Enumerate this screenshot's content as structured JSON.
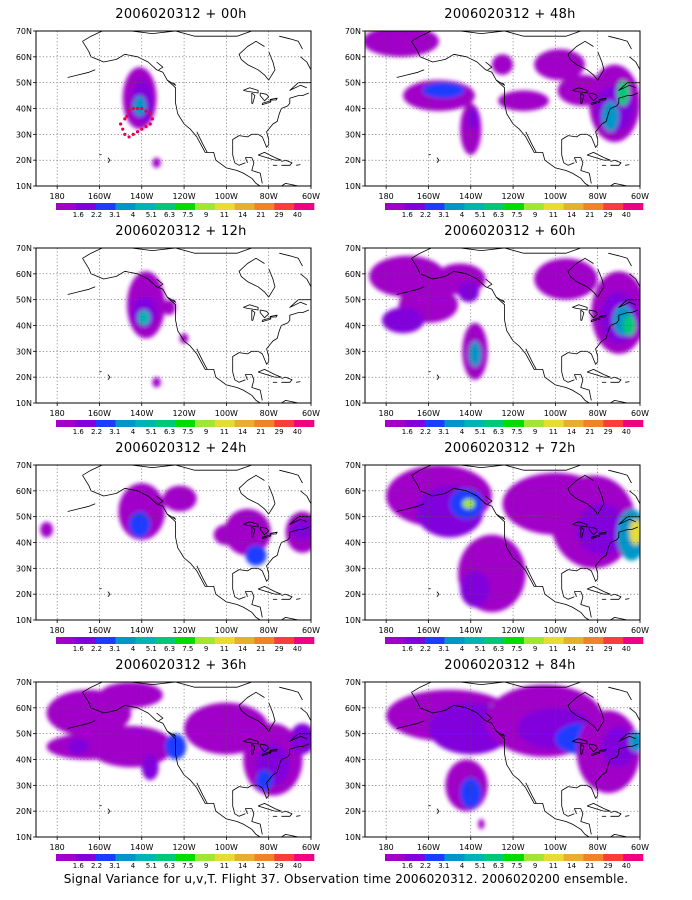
{
  "panels": [
    {
      "title": "2006020312 + 00h"
    },
    {
      "title": "2006020312 + 48h"
    },
    {
      "title": "2006020312 + 12h"
    },
    {
      "title": "2006020312 + 60h"
    },
    {
      "title": "2006020312 + 24h"
    },
    {
      "title": "2006020312 + 72h"
    },
    {
      "title": "2006020312 + 36h"
    },
    {
      "title": "2006020312 + 84h"
    }
  ],
  "lat_labels": [
    "70N",
    "60N",
    "50N",
    "40N",
    "30N",
    "20N",
    "10N"
  ],
  "lon_labels": [
    "180",
    "160W",
    "140W",
    "120W",
    "100W",
    "80W",
    "60W"
  ],
  "colorbar": {
    "labels": [
      "1.6",
      "2.2",
      "3.1",
      "4",
      "5.1",
      "6.3",
      "7.5",
      "9",
      "11",
      "14",
      "21",
      "29",
      "40"
    ],
    "colors": [
      "#a000c8",
      "#8200dc",
      "#1e3cff",
      "#0096c8",
      "#00b4b4",
      "#00c878",
      "#00dc00",
      "#a0e632",
      "#e6dc32",
      "#e6af2d",
      "#f08228",
      "#fa3c3c",
      "#f00082"
    ]
  },
  "caption": "Signal Variance for u,v,T. Flight 37. Observation time 2006020312. 2006020200 ensemble.",
  "map": {
    "projection": "lat-lon",
    "extent_lon": [
      -190,
      -60
    ],
    "extent_lat": [
      10,
      70
    ],
    "grid": "dotted"
  }
}
